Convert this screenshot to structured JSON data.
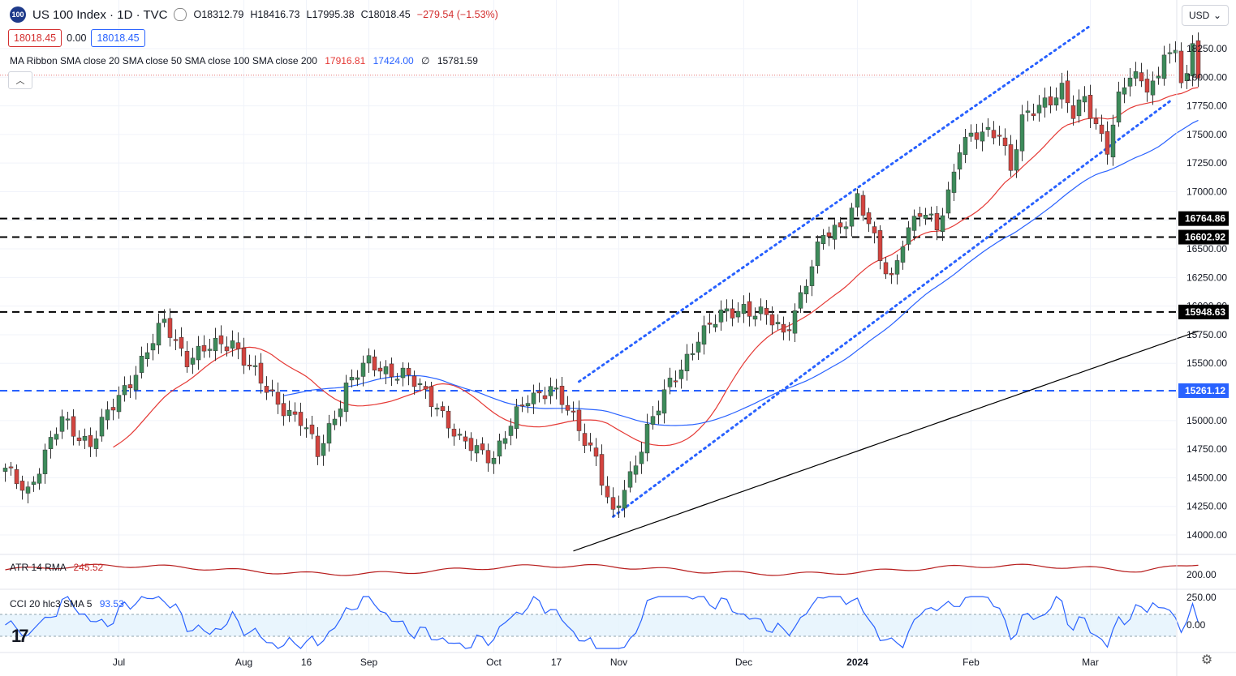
{
  "header": {
    "logo_text": "100",
    "title": "US 100 Index · 1D · TVC",
    "open": "O18312.79",
    "high": "H18416.73",
    "low": "L17995.38",
    "close": "C18018.45",
    "change": "−279.54 (−1.53%)"
  },
  "price_boxes": {
    "bid": "18018.45",
    "spread": "0.00",
    "ask": "18018.45"
  },
  "ma_ribbon": {
    "label": "MA Ribbon SMA close 20 SMA close 50 SMA close 100 SMA close 200",
    "v20": "17916.81",
    "v50": "17424.00",
    "v100": "∅",
    "v200": "15781.59"
  },
  "currency": {
    "label": "USD",
    "chevron": "chevron-down-icon"
  },
  "atr": {
    "label": "ATR 14 RMA",
    "value": "245.52"
  },
  "cci": {
    "label": "CCI 20 hlc3 SMA 5",
    "value": "93.53"
  },
  "tv_logo": "17",
  "colors": {
    "up": "#3d8b5a",
    "down": "#d3443f",
    "sma20": "#e53935",
    "sma50": "#2962ff",
    "sma200": "#000000",
    "channel": "#2962ff",
    "atr": "#b71c1c",
    "cci": "#2962ff"
  },
  "chart_data": {
    "type": "candlestick",
    "y_ticks": [
      14000,
      14250,
      14500,
      14750,
      15000,
      15250,
      15500,
      15750,
      16000,
      16250,
      16500,
      16750,
      17000,
      17250,
      17500,
      17750,
      18000,
      18250
    ],
    "y_range": [
      13860,
      18560
    ],
    "x_labels": [
      "Jul",
      "Aug",
      "16",
      "Sep",
      "Oct",
      "17",
      "Nov",
      "Dec",
      "2024",
      "Feb",
      "Mar"
    ],
    "x_label_bars": [
      20,
      42,
      53,
      64,
      86,
      97,
      108,
      130,
      150,
      170,
      191
    ],
    "levels": [
      {
        "label": "16764.86",
        "value": 16764.86,
        "color": "#000000"
      },
      {
        "label": "16602.92",
        "value": 16602.92,
        "color": "#000000"
      },
      {
        "label": "15948.63",
        "value": 15948.63,
        "color": "#000000"
      },
      {
        "label": "15261.12",
        "value": 15261.12,
        "color": "#2962ff"
      }
    ],
    "channel": {
      "upper": [
        [
          101,
          15340
        ],
        [
          191,
          18450
        ]
      ],
      "lower": [
        [
          107,
          14160
        ],
        [
          205,
          17790
        ]
      ]
    },
    "atr_ticks": [
      200
    ],
    "cci_ticks": [
      250,
      0
    ],
    "cci_band": [
      100,
      -100
    ]
  }
}
